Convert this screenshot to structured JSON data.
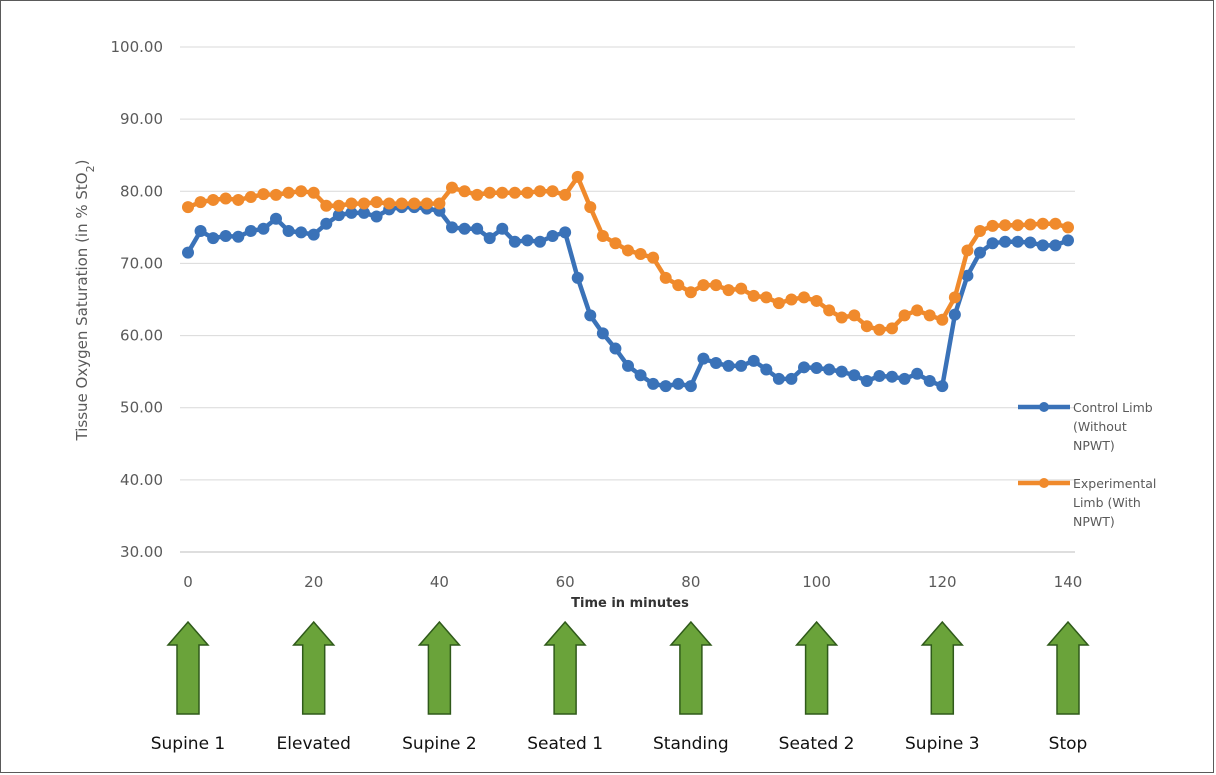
{
  "chart_data": {
    "type": "line",
    "title": "",
    "xlabel": "Time in minutes",
    "ylabel": "Tissue Oxygen Saturation (in % StO",
    "ylabel_sub": "2",
    "ylabel_tail": ")",
    "xlim": [
      0,
      140
    ],
    "ylim": [
      30,
      100
    ],
    "x_ticks": [
      "0",
      "20",
      "40",
      "60",
      "80",
      "100",
      "120",
      "140"
    ],
    "y_ticks": [
      "30.00",
      "40.00",
      "50.00",
      "60.00",
      "70.00",
      "80.00",
      "90.00",
      "100.00"
    ],
    "grid": "horizontal",
    "legend_position": "right",
    "series": [
      {
        "name_lines": [
          "Control Limb",
          "(Without",
          "NPWT)"
        ],
        "color": "#3a72b8",
        "x": [
          0,
          2,
          4,
          6,
          8,
          10,
          12,
          14,
          16,
          18,
          20,
          22,
          24,
          26,
          28,
          30,
          32,
          34,
          36,
          38,
          40,
          42,
          44,
          46,
          48,
          50,
          52,
          54,
          56,
          58,
          60,
          62,
          64,
          66,
          68,
          70,
          72,
          74,
          76,
          78,
          80,
          82,
          84,
          86,
          88,
          90,
          92,
          94,
          96,
          98,
          100,
          102,
          104,
          106,
          108,
          110,
          112,
          114,
          116,
          118,
          120,
          122,
          124,
          126,
          128,
          130,
          132,
          134,
          136,
          138,
          140
        ],
        "values": [
          71.5,
          74.5,
          73.5,
          73.8,
          73.7,
          74.5,
          74.8,
          76.2,
          74.5,
          74.3,
          74.0,
          75.5,
          76.7,
          77.0,
          77.0,
          76.5,
          77.5,
          77.8,
          77.8,
          77.6,
          77.3,
          75.0,
          74.8,
          74.8,
          73.5,
          74.8,
          73.0,
          73.2,
          73.0,
          73.8,
          74.3,
          68.0,
          62.8,
          60.3,
          58.2,
          55.8,
          54.5,
          53.3,
          53.0,
          53.3,
          53.0,
          56.8,
          56.2,
          55.8,
          55.8,
          56.5,
          55.3,
          54.0,
          54.0,
          55.6,
          55.5,
          55.3,
          55.0,
          54.5,
          53.7,
          54.4,
          54.3,
          54.0,
          54.7,
          53.7,
          53.0,
          62.9,
          68.3,
          71.5,
          72.8,
          73.0,
          73.0,
          72.9,
          72.5,
          72.5,
          73.2
        ]
      },
      {
        "name_lines": [
          "Experimental",
          "Limb (With",
          "NPWT)"
        ],
        "color": "#f08a2c",
        "x": [
          0,
          2,
          4,
          6,
          8,
          10,
          12,
          14,
          16,
          18,
          20,
          22,
          24,
          26,
          28,
          30,
          32,
          34,
          36,
          38,
          40,
          42,
          44,
          46,
          48,
          50,
          52,
          54,
          56,
          58,
          60,
          62,
          64,
          66,
          68,
          70,
          72,
          74,
          76,
          78,
          80,
          82,
          84,
          86,
          88,
          90,
          92,
          94,
          96,
          98,
          100,
          102,
          104,
          106,
          108,
          110,
          112,
          114,
          116,
          118,
          120,
          122,
          124,
          126,
          128,
          130,
          132,
          134,
          136,
          138,
          140
        ],
        "values": [
          77.8,
          78.5,
          78.8,
          79.0,
          78.8,
          79.2,
          79.6,
          79.5,
          79.8,
          80.0,
          79.8,
          78.0,
          78.0,
          78.3,
          78.3,
          78.5,
          78.3,
          78.3,
          78.3,
          78.3,
          78.3,
          80.5,
          80.0,
          79.5,
          79.8,
          79.8,
          79.8,
          79.8,
          80.0,
          80.0,
          79.5,
          82.0,
          77.8,
          73.8,
          72.8,
          71.8,
          71.3,
          70.8,
          68.0,
          67.0,
          66.0,
          67.0,
          67.0,
          66.3,
          66.5,
          65.5,
          65.3,
          64.5,
          65.0,
          65.3,
          64.8,
          63.5,
          62.5,
          62.8,
          61.3,
          60.8,
          61.0,
          62.8,
          63.5,
          62.8,
          62.2,
          65.3,
          71.8,
          74.5,
          75.2,
          75.3,
          75.3,
          75.4,
          75.5,
          75.5,
          75.0
        ]
      }
    ],
    "phase_labels": [
      "Supine 1",
      "Elevated",
      "Supine 2",
      "Seated 1",
      "Standing",
      "Seated 2",
      "Supine 3",
      "Stop"
    ],
    "arrow_color": "#6aa33a",
    "arrow_outline": "#2f5a1a"
  }
}
